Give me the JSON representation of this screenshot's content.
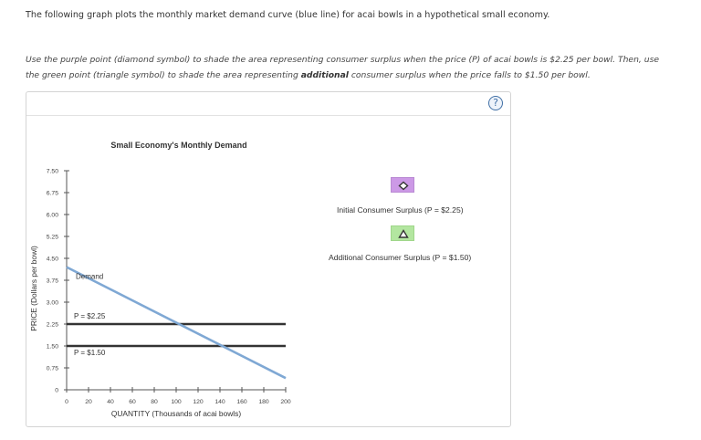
{
  "intro_text": "The following graph plots the monthly market demand curve (blue line) for acai bowls in a hypothetical small economy.",
  "instructions": {
    "part1": "Use the purple point (diamond symbol) to shade the area representing consumer surplus when the price (P) of acai bowls is $2.25 per bowl. Then, use the green point (triangle symbol) to shade the area representing ",
    "bold": "additional",
    "part2": " consumer surplus when the price falls to $1.50 per bowl."
  },
  "help_label": "?",
  "chart_data": {
    "type": "line",
    "title": "Small Economy's Monthly Demand",
    "xlabel": "QUANTITY (Thousands of acai bowls)",
    "ylabel": "PRICE (Dollars per bowl)",
    "xlim": [
      0,
      200
    ],
    "ylim": [
      0,
      7.5
    ],
    "x_ticks": [
      "0",
      "20",
      "40",
      "60",
      "80",
      "100",
      "120",
      "140",
      "160",
      "180",
      "200"
    ],
    "y_ticks": [
      "0",
      "0.75",
      "1.50",
      "2.25",
      "3.00",
      "3.75",
      "4.50",
      "5.25",
      "6.00",
      "6.75",
      "7.50"
    ],
    "series": [
      {
        "name": "Demand",
        "color": "#7fa8d4",
        "points": [
          [
            0,
            4.2
          ],
          [
            200,
            0.4
          ]
        ]
      }
    ],
    "price_lines": [
      {
        "label": "P = $2.25",
        "value": 2.25,
        "color": "#333333"
      },
      {
        "label": "P = $1.50",
        "value": 1.5,
        "color": "#333333"
      }
    ]
  },
  "legend": {
    "items": [
      {
        "label": "Initial Consumer Surplus (P = $2.25)",
        "symbol": "diamond",
        "color": "#cc99e6"
      },
      {
        "label": "Additional Consumer Surplus (P = $1.50)",
        "symbol": "triangle",
        "color": "#b3e6a0"
      }
    ]
  }
}
